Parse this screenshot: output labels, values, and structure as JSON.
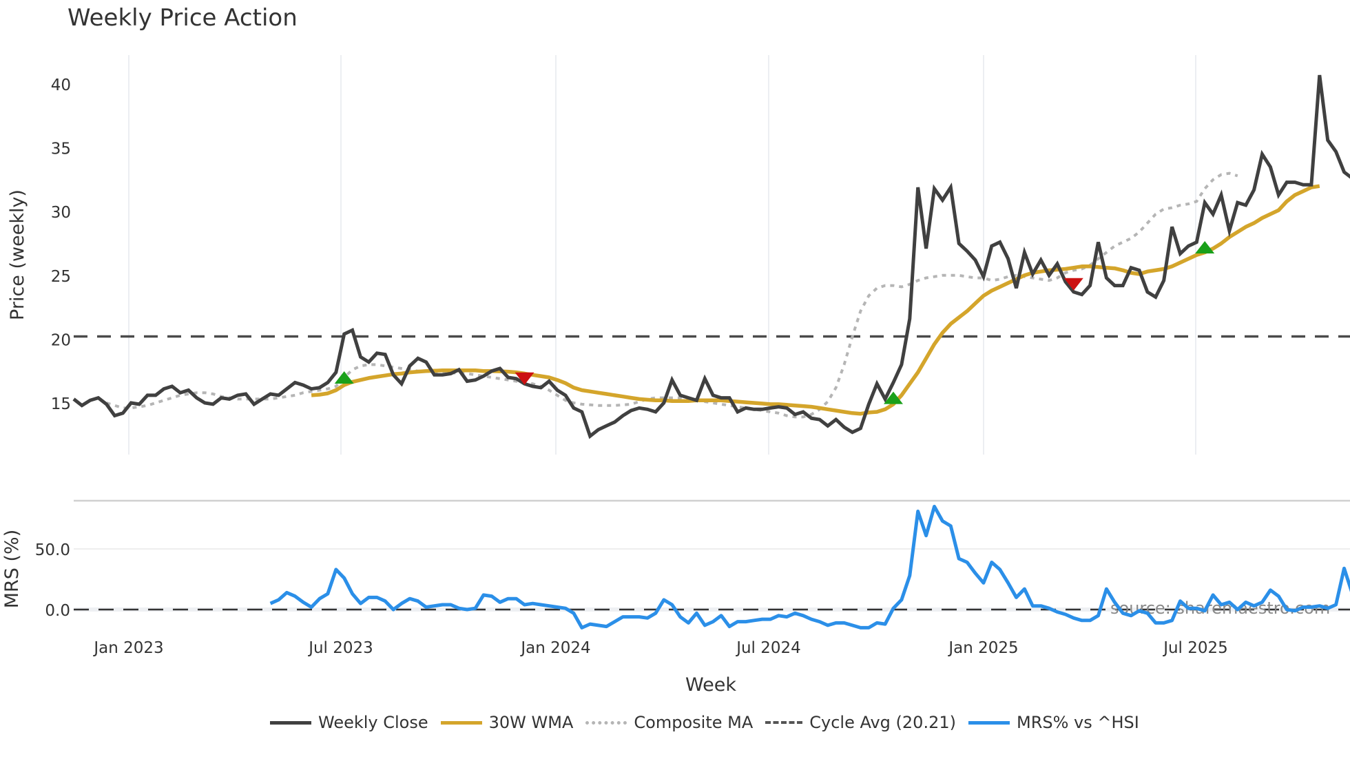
{
  "title": "Weekly Price Action",
  "chart_data": [
    {
      "type": "line",
      "title": "Weekly Price Action",
      "xlabel": "",
      "ylabel": "Price (weekly)",
      "ylim": [
        11,
        42
      ],
      "yticks": [
        15,
        20,
        25,
        30,
        35,
        40
      ],
      "x_tick_labels": [
        "Jan 2023",
        "Jul 2023",
        "Jan 2024",
        "Jul 2024",
        "Jan 2025",
        "Jul 2025"
      ],
      "grid": "vertical",
      "x_start_week": 0,
      "week_step": 1,
      "series": [
        {
          "name": "Weekly Close",
          "color": "#404040",
          "values": [
            15.3,
            14.8,
            15.2,
            15.4,
            14.9,
            14.0,
            14.2,
            15.0,
            14.9,
            15.6,
            15.6,
            16.1,
            16.3,
            15.8,
            16.0,
            15.4,
            15.0,
            14.9,
            15.4,
            15.3,
            15.6,
            15.7,
            14.9,
            15.3,
            15.7,
            15.6,
            16.1,
            16.6,
            16.4,
            16.1,
            16.2,
            16.6,
            17.4,
            20.4,
            20.7,
            18.6,
            18.2,
            18.9,
            18.8,
            17.2,
            16.5,
            17.9,
            18.5,
            18.2,
            17.2,
            17.2,
            17.3,
            17.6,
            16.7,
            16.8,
            17.1,
            17.5,
            17.7,
            17.0,
            16.9,
            16.5,
            16.3,
            16.2,
            16.7,
            16.0,
            15.6,
            14.6,
            14.3,
            12.4,
            12.9,
            13.2,
            13.5,
            14.0,
            14.4,
            14.6,
            14.5,
            14.3,
            15.0,
            16.8,
            15.6,
            15.4,
            15.2,
            16.9,
            15.6,
            15.4,
            15.4,
            14.3,
            14.6,
            14.5,
            14.5,
            14.6,
            14.7,
            14.6,
            14.1,
            14.3,
            13.8,
            13.7,
            13.2,
            13.7,
            13.1,
            12.7,
            13.0,
            14.9,
            16.5,
            15.3,
            16.6,
            18.0,
            21.6,
            31.9,
            27.1,
            31.8,
            30.9,
            31.9,
            27.5,
            26.9,
            26.2,
            24.9,
            27.3,
            27.6,
            26.3,
            24.0,
            26.8,
            25.1,
            26.2,
            25.0,
            25.9,
            24.5,
            23.7,
            23.5,
            24.2,
            27.6,
            24.8,
            24.2,
            24.2,
            25.6,
            25.4,
            23.7,
            23.3,
            24.6,
            28.8,
            26.7,
            27.3,
            27.6,
            30.7,
            29.8,
            31.3,
            28.5,
            30.7,
            30.5,
            31.7,
            34.5,
            33.5,
            31.3,
            32.3,
            32.3,
            32.1,
            32.1,
            40.7,
            35.6,
            34.7,
            33.1,
            32.6
          ]
        },
        {
          "name": "30W WMA",
          "color": "#d4a52b",
          "start_week": 29,
          "values": [
            15.6,
            15.65,
            15.75,
            16.0,
            16.4,
            16.65,
            16.8,
            16.95,
            17.05,
            17.15,
            17.25,
            17.3,
            17.4,
            17.45,
            17.5,
            17.52,
            17.55,
            17.55,
            17.55,
            17.55,
            17.55,
            17.5,
            17.5,
            17.48,
            17.45,
            17.4,
            17.3,
            17.2,
            17.1,
            17.0,
            16.8,
            16.55,
            16.2,
            16.0,
            15.9,
            15.8,
            15.7,
            15.6,
            15.5,
            15.4,
            15.3,
            15.25,
            15.2,
            15.2,
            15.15,
            15.15,
            15.15,
            15.2,
            15.2,
            15.2,
            15.2,
            15.15,
            15.1,
            15.05,
            15.0,
            14.95,
            14.9,
            14.9,
            14.85,
            14.8,
            14.75,
            14.7,
            14.6,
            14.5,
            14.4,
            14.3,
            14.2,
            14.15,
            14.25,
            14.3,
            14.5,
            14.9,
            15.6,
            16.5,
            17.4,
            18.5,
            19.6,
            20.5,
            21.2,
            21.7,
            22.2,
            22.8,
            23.4,
            23.8,
            24.1,
            24.4,
            24.7,
            25.0,
            25.2,
            25.3,
            25.4,
            25.45,
            25.5,
            25.6,
            25.7,
            25.7,
            25.65,
            25.6,
            25.55,
            25.4,
            25.2,
            25.1,
            25.3,
            25.4,
            25.5,
            25.7,
            26.0,
            26.3,
            26.6,
            26.8,
            27.1,
            27.5,
            28.0,
            28.4,
            28.8,
            29.1,
            29.5,
            29.8,
            30.1,
            30.8,
            31.3,
            31.6,
            31.9,
            32.0
          ]
        },
        {
          "name": "Composite MA",
          "color": "#b5b5b5",
          "start_week": 4,
          "values": [
            15.0,
            14.8,
            14.6,
            14.6,
            14.7,
            14.8,
            15.0,
            15.2,
            15.4,
            15.6,
            15.7,
            15.8,
            15.8,
            15.7,
            15.5,
            15.4,
            15.3,
            15.3,
            15.3,
            15.3,
            15.3,
            15.4,
            15.5,
            15.6,
            15.8,
            15.9,
            16.0,
            16.1,
            16.3,
            17.0,
            17.6,
            17.9,
            18.0,
            18.0,
            17.9,
            17.8,
            17.7,
            17.6,
            17.5,
            17.5,
            17.4,
            17.4,
            17.4,
            17.3,
            17.3,
            17.2,
            17.1,
            17.0,
            16.9,
            16.8,
            16.7,
            16.6,
            16.5,
            16.3,
            16.0,
            15.6,
            15.2,
            15.0,
            14.9,
            14.85,
            14.8,
            14.8,
            14.8,
            14.85,
            14.9,
            15.1,
            15.3,
            15.4,
            15.4,
            15.4,
            15.4,
            15.3,
            15.2,
            15.1,
            15.0,
            14.9,
            14.8,
            14.7,
            14.6,
            14.5,
            14.4,
            14.3,
            14.2,
            14.0,
            13.9,
            13.9,
            14.1,
            14.5,
            15.1,
            16.2,
            18.0,
            20.2,
            22.2,
            23.4,
            24.0,
            24.2,
            24.2,
            24.1,
            24.3,
            24.6,
            24.8,
            24.9,
            25.0,
            25.0,
            25.0,
            24.9,
            24.8,
            24.8,
            24.6,
            24.7,
            24.9,
            25.0,
            24.9,
            24.8,
            24.7,
            24.6,
            24.8,
            25.2,
            25.4,
            25.5,
            25.8,
            26.3,
            26.8,
            27.3,
            27.6,
            27.9,
            28.4,
            29.1,
            29.8,
            30.2,
            30.3,
            30.5,
            30.6,
            30.8,
            31.8,
            32.5,
            32.9,
            33.0,
            32.8
          ]
        },
        {
          "name": "Cycle Avg (20.21)",
          "color": "#4a4a4a",
          "values": [
            20.21
          ]
        }
      ],
      "annotations": [
        {
          "type": "buy-marker",
          "shape": "triangle-up",
          "color": "#1aa01a",
          "week": 33,
          "value": 17.0
        },
        {
          "type": "sell-marker",
          "shape": "triangle-down",
          "color": "#cc1111",
          "week": 55,
          "value": 16.9
        },
        {
          "type": "buy-marker",
          "shape": "triangle-up",
          "color": "#1aa01a",
          "week": 100,
          "value": 15.4
        },
        {
          "type": "sell-marker",
          "shape": "triangle-down",
          "color": "#cc1111",
          "week": 122,
          "value": 24.3
        },
        {
          "type": "buy-marker",
          "shape": "triangle-up",
          "color": "#1aa01a",
          "week": 138,
          "value": 27.2
        }
      ]
    },
    {
      "type": "line",
      "title": "",
      "xlabel": "Week",
      "ylabel": "MRS (%)",
      "ylim": [
        -25,
        90
      ],
      "yticks": [
        0.0,
        50.0
      ],
      "x_tick_labels": [
        "Jan 2023",
        "Jul 2023",
        "Jan 2024",
        "Jul 2024",
        "Jan 2025",
        "Jul 2025"
      ],
      "series": [
        {
          "name": "MRS% vs ^HSI",
          "color": "#2b8fe8",
          "start_week": 24,
          "values": [
            5,
            8,
            14,
            11,
            6,
            2,
            9,
            13,
            33,
            26,
            13,
            5,
            10,
            10,
            7,
            0,
            5,
            9,
            7,
            2,
            3,
            4,
            4,
            1,
            0,
            1,
            12,
            11,
            6,
            9,
            9,
            4,
            5,
            4,
            3,
            2,
            1,
            -3,
            -15,
            -12,
            -13,
            -14,
            -10,
            -6,
            -6,
            -6,
            -7,
            -3,
            8,
            4,
            -6,
            -11,
            -3,
            -13,
            -10,
            -5,
            -14,
            -10,
            -10,
            -9,
            -8,
            -8,
            -5,
            -6,
            -3,
            -5,
            -8,
            -10,
            -13,
            -11,
            -11,
            -13,
            -15,
            -15,
            -11,
            -12,
            1,
            8,
            28,
            81,
            61,
            85,
            73,
            69,
            42,
            39,
            30,
            22,
            39,
            33,
            22,
            10,
            17,
            3,
            3,
            1,
            -2,
            -4,
            -7,
            -9,
            -9,
            -5,
            17,
            6,
            -3,
            -5,
            -1,
            -3,
            -11,
            -11,
            -9,
            7,
            1,
            1,
            -1,
            12,
            4,
            6,
            0,
            6,
            3,
            6,
            16,
            11,
            0,
            -1,
            2,
            2,
            3,
            1,
            4,
            34,
            13,
            9,
            6,
            2
          ]
        },
        {
          "name": "zero-line",
          "color": "#333333",
          "values": [
            0
          ]
        }
      ]
    }
  ],
  "axes": {
    "price_ylabel": "Price (weekly)",
    "mrs_ylabel": "MRS (%)",
    "xlabel": "Week",
    "price_yticks": [
      "15",
      "20",
      "25",
      "30",
      "35",
      "40"
    ],
    "mrs_yticks": [
      "50.0",
      "0.0"
    ],
    "x_ticks": [
      "Jan 2023",
      "Jul 2023",
      "Jan 2024",
      "Jul 2024",
      "Jan 2025",
      "Jul 2025"
    ]
  },
  "watermark": "source: sharemaestro.com",
  "legend": [
    {
      "label": "Weekly Close",
      "color": "#404040",
      "style": "solid"
    },
    {
      "label": "30W WMA",
      "color": "#d4a52b",
      "style": "solid"
    },
    {
      "label": "Composite MA",
      "color": "#b5b5b5",
      "style": "dotted"
    },
    {
      "label": "Cycle Avg (20.21)",
      "color": "#4a4a4a",
      "style": "dashed"
    },
    {
      "label": "MRS% vs ^HSI",
      "color": "#2b8fe8",
      "style": "solid"
    }
  ]
}
